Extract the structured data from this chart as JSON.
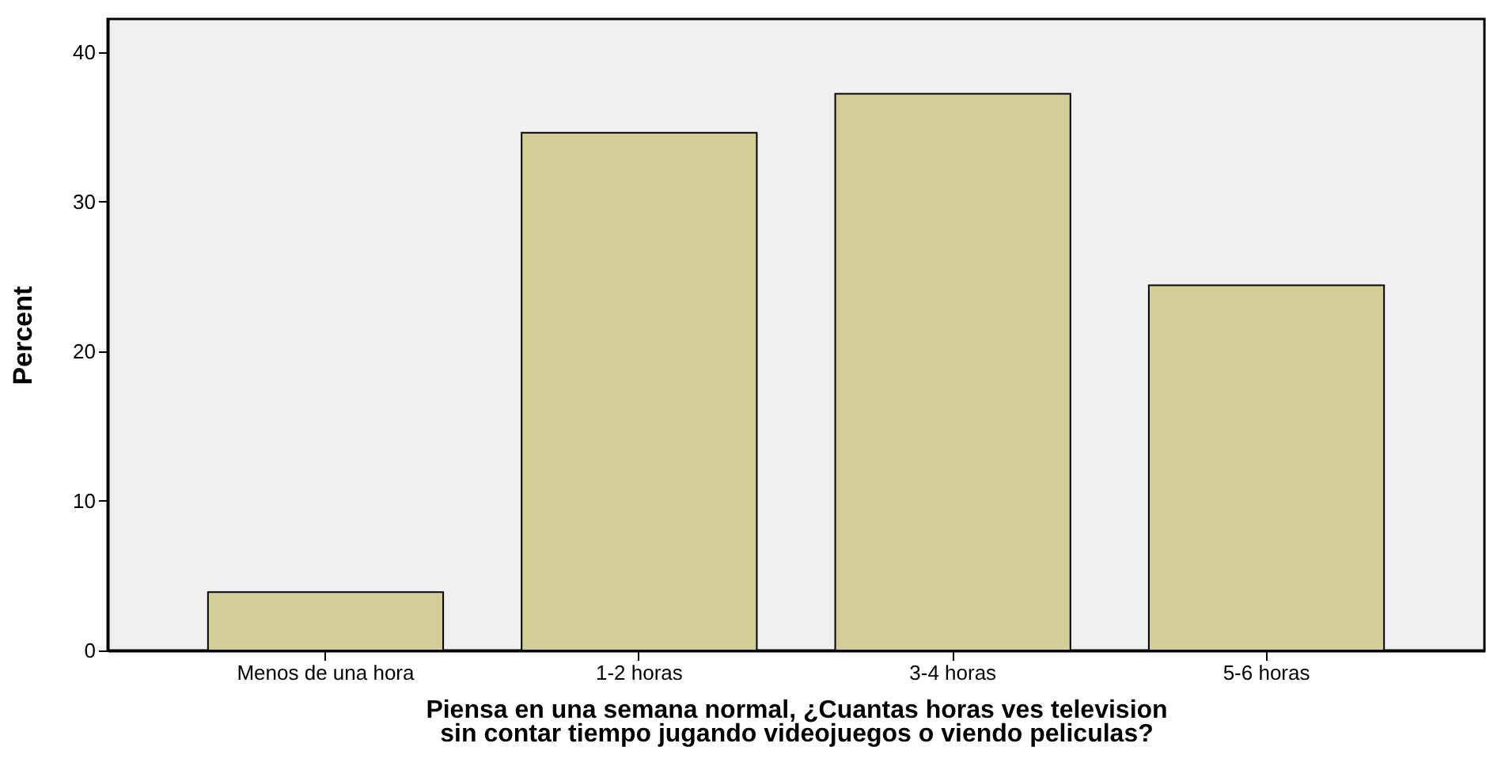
{
  "chart_data": {
    "type": "bar",
    "xlabel": "Piensa en una semana normal, ¿Cuantas horas ves television sin contar tiempo jugando videojuegos o viendo peliculas?",
    "ylabel": "Percent",
    "categories": [
      "Menos de una hora",
      "1-2 horas",
      "3-4 horas",
      "5-6 horas"
    ],
    "values": [
      3.9,
      34.6,
      37.2,
      24.4
    ],
    "color": "#d3ce98",
    "ylim": [
      0,
      42.2
    ],
    "yticks": [
      0,
      10,
      20,
      30,
      40
    ],
    "grid": false
  }
}
